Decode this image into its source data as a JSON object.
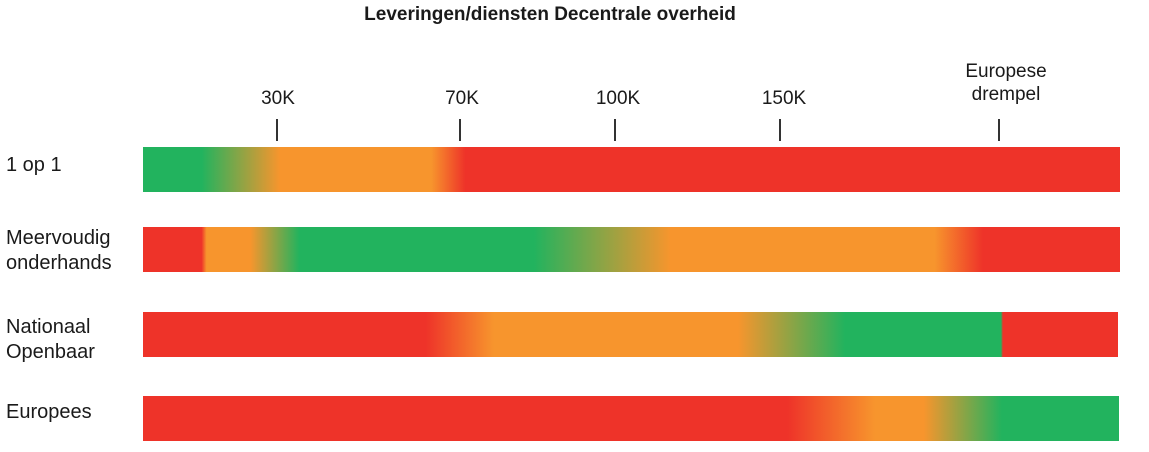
{
  "chart_data": {
    "type": "bar",
    "title": "Leveringen/diensten Decentrale overheid",
    "ticks": [
      {
        "label": "30K",
        "value": 30000
      },
      {
        "label": "70K",
        "value": 70000
      },
      {
        "label": "100K",
        "value": 100000
      },
      {
        "label": "150K",
        "value": 150000
      },
      {
        "label": "Europese drempel",
        "lines": [
          "Europese",
          "drempel"
        ],
        "value": "Europese drempel"
      }
    ],
    "rows": [
      {
        "label": "1 op 1",
        "lines": [
          "1 op 1"
        ]
      },
      {
        "label": "Meervoudig onderhands",
        "lines": [
          "Meervoudig",
          "onderhands"
        ]
      },
      {
        "label": "Nationaal Openbaar",
        "lines": [
          "Nationaal",
          "Openbaar"
        ]
      },
      {
        "label": "Europees",
        "lines": [
          "Europees"
        ]
      }
    ],
    "colors": {
      "green": "#22b35e",
      "orange": "#f7952d",
      "red": "#ee3329"
    }
  }
}
